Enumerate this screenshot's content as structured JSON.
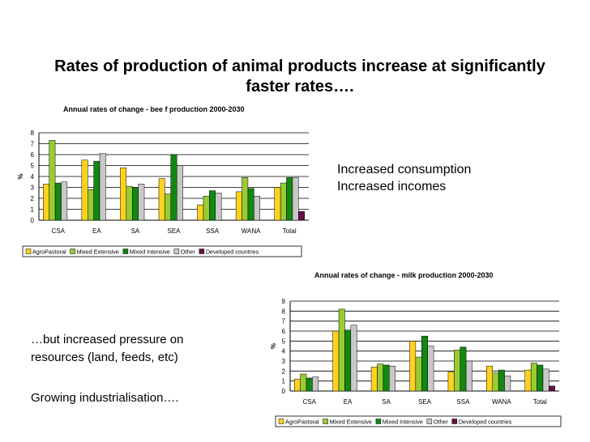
{
  "slide": {
    "title": "Rates of production of animal products increase at significantly faster rates….",
    "text_consumption": "Increased consumption",
    "text_incomes": "Increased incomes",
    "text_pressure_line1": "…but increased pressure on",
    "text_pressure_line2": "resources (land, feeds, etc)",
    "text_industrialisation": "Growing industrialisation…."
  },
  "colors": {
    "AgroPastoral": "#FFD21F",
    "Mixed Extensive": "#99CC33",
    "Mixed Intensive": "#118811",
    "Other": "#C8C8C8",
    "Developed countries": "#661144"
  },
  "chart_data": [
    {
      "type": "bar",
      "title": "Annual rates of change - bee f production 2000-2030",
      "ylabel": "%",
      "ylim": [
        0,
        8
      ],
      "yticks": [
        0,
        1,
        2,
        3,
        4,
        5,
        6,
        7,
        8
      ],
      "grid": true,
      "legend_position": "bottom",
      "categories": [
        "CSA",
        "EA",
        "SA",
        "SEA",
        "SSA",
        "WANA",
        "Total"
      ],
      "series": [
        {
          "name": "AgroPastoral",
          "values": [
            3.3,
            5.5,
            4.8,
            3.8,
            1.4,
            2.6,
            3.0
          ]
        },
        {
          "name": "Mixed Extensive",
          "values": [
            7.3,
            2.8,
            3.1,
            2.4,
            2.2,
            3.9,
            3.4
          ]
        },
        {
          "name": "Mixed Intensive",
          "values": [
            3.4,
            5.4,
            3.0,
            6.0,
            2.7,
            2.9,
            3.9
          ]
        },
        {
          "name": "Other",
          "values": [
            3.5,
            6.1,
            3.3,
            5.0,
            2.5,
            2.2,
            3.9
          ]
        },
        {
          "name": "Developed countries",
          "values": [
            null,
            null,
            null,
            null,
            null,
            null,
            0.8
          ]
        }
      ]
    },
    {
      "type": "bar",
      "title": "Annual rates of change - milk production 2000-2030",
      "ylabel": "%",
      "ylim": [
        0,
        9
      ],
      "yticks": [
        0,
        1,
        2,
        3,
        4,
        5,
        6,
        7,
        8,
        9
      ],
      "grid": true,
      "legend_position": "bottom",
      "categories": [
        "CSA",
        "EA",
        "SA",
        "SEA",
        "SSA",
        "WANA",
        "Total"
      ],
      "series": [
        {
          "name": "AgroPastoral",
          "values": [
            1.2,
            6.0,
            2.4,
            5.0,
            1.9,
            2.5,
            2.1
          ]
        },
        {
          "name": "Mixed Extensive",
          "values": [
            1.7,
            8.2,
            2.7,
            3.4,
            4.1,
            1.8,
            2.8
          ]
        },
        {
          "name": "Mixed Intensive",
          "values": [
            1.3,
            6.1,
            2.6,
            5.5,
            4.4,
            2.1,
            2.6
          ]
        },
        {
          "name": "Other",
          "values": [
            1.4,
            6.6,
            2.5,
            4.5,
            3.0,
            1.5,
            2.2
          ]
        },
        {
          "name": "Developed countries",
          "values": [
            null,
            null,
            null,
            null,
            null,
            null,
            0.5
          ]
        }
      ]
    }
  ]
}
